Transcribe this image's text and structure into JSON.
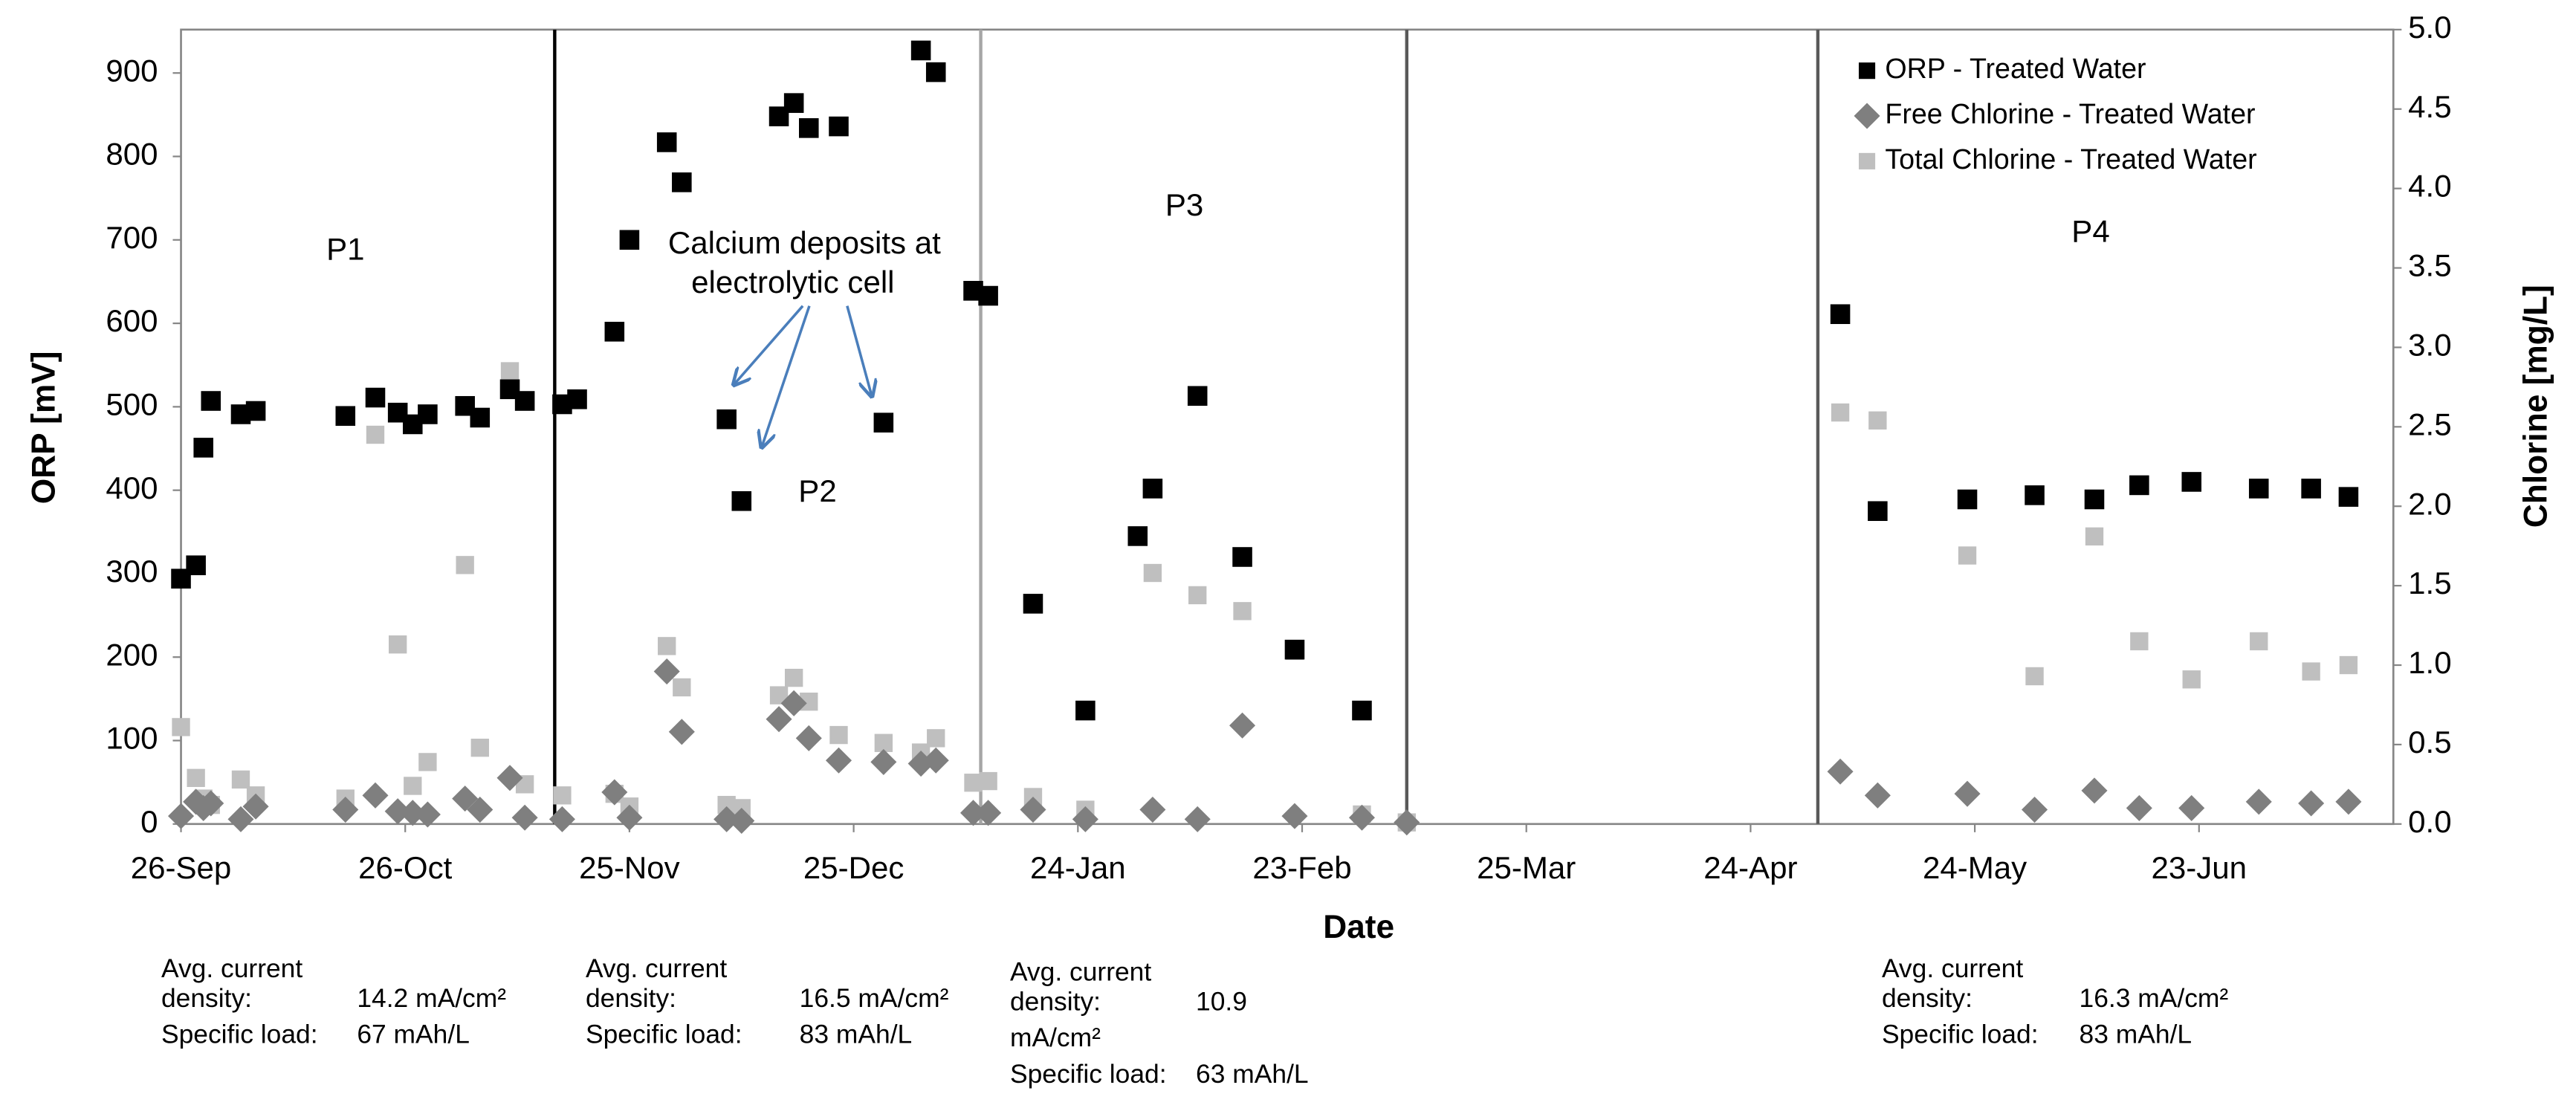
{
  "chart_data": {
    "type": "scatter",
    "x_label": "Date",
    "y_label": "ORP [mV]",
    "y2_label": "Chlorine [mg/L]",
    "xlim": [
      0,
      296
    ],
    "xticks": [
      {
        "value": 0,
        "label": "26-Sep"
      },
      {
        "value": 30,
        "label": "26-Oct"
      },
      {
        "value": 60,
        "label": "25-Nov"
      },
      {
        "value": 90,
        "label": "25-Dec"
      },
      {
        "value": 120,
        "label": "24-Jan"
      },
      {
        "value": 150,
        "label": "23-Feb"
      },
      {
        "value": 180,
        "label": "25-Mar"
      },
      {
        "value": 210,
        "label": "24-Apr"
      },
      {
        "value": 240,
        "label": "24-May"
      },
      {
        "value": 270,
        "label": "23-Jun"
      }
    ],
    "ylim": [
      0,
      952
    ],
    "yticks": [
      0,
      100,
      200,
      300,
      400,
      500,
      600,
      700,
      800,
      900
    ],
    "y2lim": [
      0,
      5
    ],
    "y2ticks": [
      {
        "value": 0,
        "label": "0.0"
      },
      {
        "value": 0.5,
        "label": "0.5"
      },
      {
        "value": 1,
        "label": "1.0"
      },
      {
        "value": 1.5,
        "label": "1.5"
      },
      {
        "value": 2,
        "label": "2.0"
      },
      {
        "value": 2.5,
        "label": "2.5"
      },
      {
        "value": 3,
        "label": "3.0"
      },
      {
        "value": 3.5,
        "label": "3.5"
      },
      {
        "value": 4,
        "label": "4.0"
      },
      {
        "value": 4.5,
        "label": "4.5"
      },
      {
        "value": 5,
        "label": "5.0"
      }
    ],
    "vlines": [
      {
        "x": 50,
        "color": "#000000"
      },
      {
        "x": 107,
        "color": "#a6a6a6"
      },
      {
        "x": 164,
        "color": "#595959"
      },
      {
        "x": 219,
        "color": "#595959"
      }
    ],
    "periods": [
      "P1",
      "P2",
      "P3",
      "P4"
    ],
    "annotation": [
      "Calcium deposits at",
      "electrolytic cell"
    ],
    "legend": "upper right",
    "series": [
      {
        "name": "ORP - Treated Water",
        "color": "#000000",
        "marker": "square",
        "x": [
          0,
          2,
          3,
          4,
          8,
          10,
          22,
          26,
          29,
          31,
          33,
          38,
          40,
          44,
          46,
          51,
          53,
          58,
          60,
          65,
          67,
          73,
          75,
          80,
          82,
          84,
          88,
          94,
          99,
          101,
          106,
          108,
          114,
          121,
          128,
          130,
          136,
          142,
          149,
          158,
          222,
          227,
          239,
          248,
          256,
          262,
          269,
          278,
          285,
          290
        ],
        "values": [
          294,
          310,
          451,
          507,
          491,
          495,
          489,
          511,
          493,
          479,
          491,
          501,
          487,
          521,
          507,
          503,
          509,
          590,
          700,
          817,
          769,
          485,
          387,
          848,
          864,
          834,
          836,
          481,
          927,
          901,
          639,
          633,
          264,
          136,
          345,
          402,
          513,
          320,
          209,
          136,
          611,
          375,
          389,
          394,
          389,
          406,
          410,
          402,
          402,
          392
        ]
      },
      {
        "name": "Free Chlorine - Treated Water",
        "color": "#7f7f7f",
        "marker": "diamond",
        "axis": "y2",
        "x": [
          0,
          2,
          3,
          4,
          8,
          10,
          22,
          26,
          29,
          31,
          33,
          38,
          40,
          44,
          46,
          51,
          58,
          60,
          65,
          67,
          73,
          75,
          80,
          82,
          84,
          88,
          94,
          99,
          101,
          106,
          108,
          114,
          121,
          130,
          136,
          142,
          149,
          158,
          164,
          222,
          227,
          239,
          248,
          256,
          262,
          269,
          278,
          285,
          290
        ],
        "values": [
          0.05,
          0.14,
          0.1,
          0.13,
          0.03,
          0.11,
          0.09,
          0.18,
          0.08,
          0.07,
          0.06,
          0.16,
          0.09,
          0.29,
          0.04,
          0.03,
          0.2,
          0.04,
          0.96,
          0.58,
          0.03,
          0.02,
          0.66,
          0.76,
          0.54,
          0.4,
          0.39,
          0.38,
          0.4,
          0.07,
          0.07,
          0.09,
          0.03,
          0.09,
          0.03,
          0.62,
          0.05,
          0.04,
          0.01,
          0.33,
          0.18,
          0.19,
          0.09,
          0.21,
          0.1,
          0.1,
          0.14,
          0.13,
          0.14
        ]
      },
      {
        "name": "Total Chlorine - Treated Water",
        "color": "#bfbfbf",
        "marker": "square",
        "axis": "y2",
        "x": [
          0,
          2,
          3,
          4,
          8,
          10,
          22,
          26,
          29,
          31,
          33,
          38,
          40,
          44,
          46,
          51,
          58,
          60,
          65,
          67,
          73,
          75,
          80,
          82,
          84,
          88,
          94,
          99,
          101,
          106,
          108,
          114,
          121,
          130,
          136,
          142,
          149,
          158,
          164,
          222,
          227,
          239,
          248,
          256,
          262,
          269,
          278,
          285,
          290
        ],
        "values": [
          0.61,
          0.29,
          0.16,
          0.12,
          0.28,
          0.18,
          0.16,
          2.45,
          1.13,
          0.24,
          0.39,
          1.63,
          0.48,
          2.85,
          0.25,
          0.18,
          0.19,
          0.11,
          1.12,
          0.86,
          0.12,
          0.1,
          0.81,
          0.92,
          0.77,
          0.56,
          0.51,
          0.45,
          0.54,
          0.26,
          0.27,
          0.17,
          0.09,
          1.58,
          1.44,
          1.34,
          1.09,
          0.06,
          0.01,
          2.59,
          2.54,
          1.69,
          0.93,
          1.81,
          1.15,
          0.91,
          1.15,
          0.96,
          1.0
        ]
      }
    ],
    "notes": [
      [
        [
          "Avg. current"
        ],
        [
          "density:",
          "14.2 mA/cm²"
        ],
        [
          "Specific load:",
          "67 mAh/L"
        ]
      ],
      [
        [
          "Avg. current"
        ],
        [
          "density:",
          "16.5 mA/cm²"
        ],
        [
          "Specific load:",
          "83 mAh/L"
        ]
      ],
      [
        [
          "Avg. current"
        ],
        [
          "density:",
          "10.9"
        ],
        [
          "mA/cm²"
        ],
        [
          "Specific load:",
          "63 mAh/L"
        ]
      ],
      [
        [
          "Avg. current"
        ],
        [
          "density:",
          "16.3 mA/cm²"
        ],
        [
          "Specific load:",
          "83 mAh/L"
        ]
      ]
    ]
  }
}
